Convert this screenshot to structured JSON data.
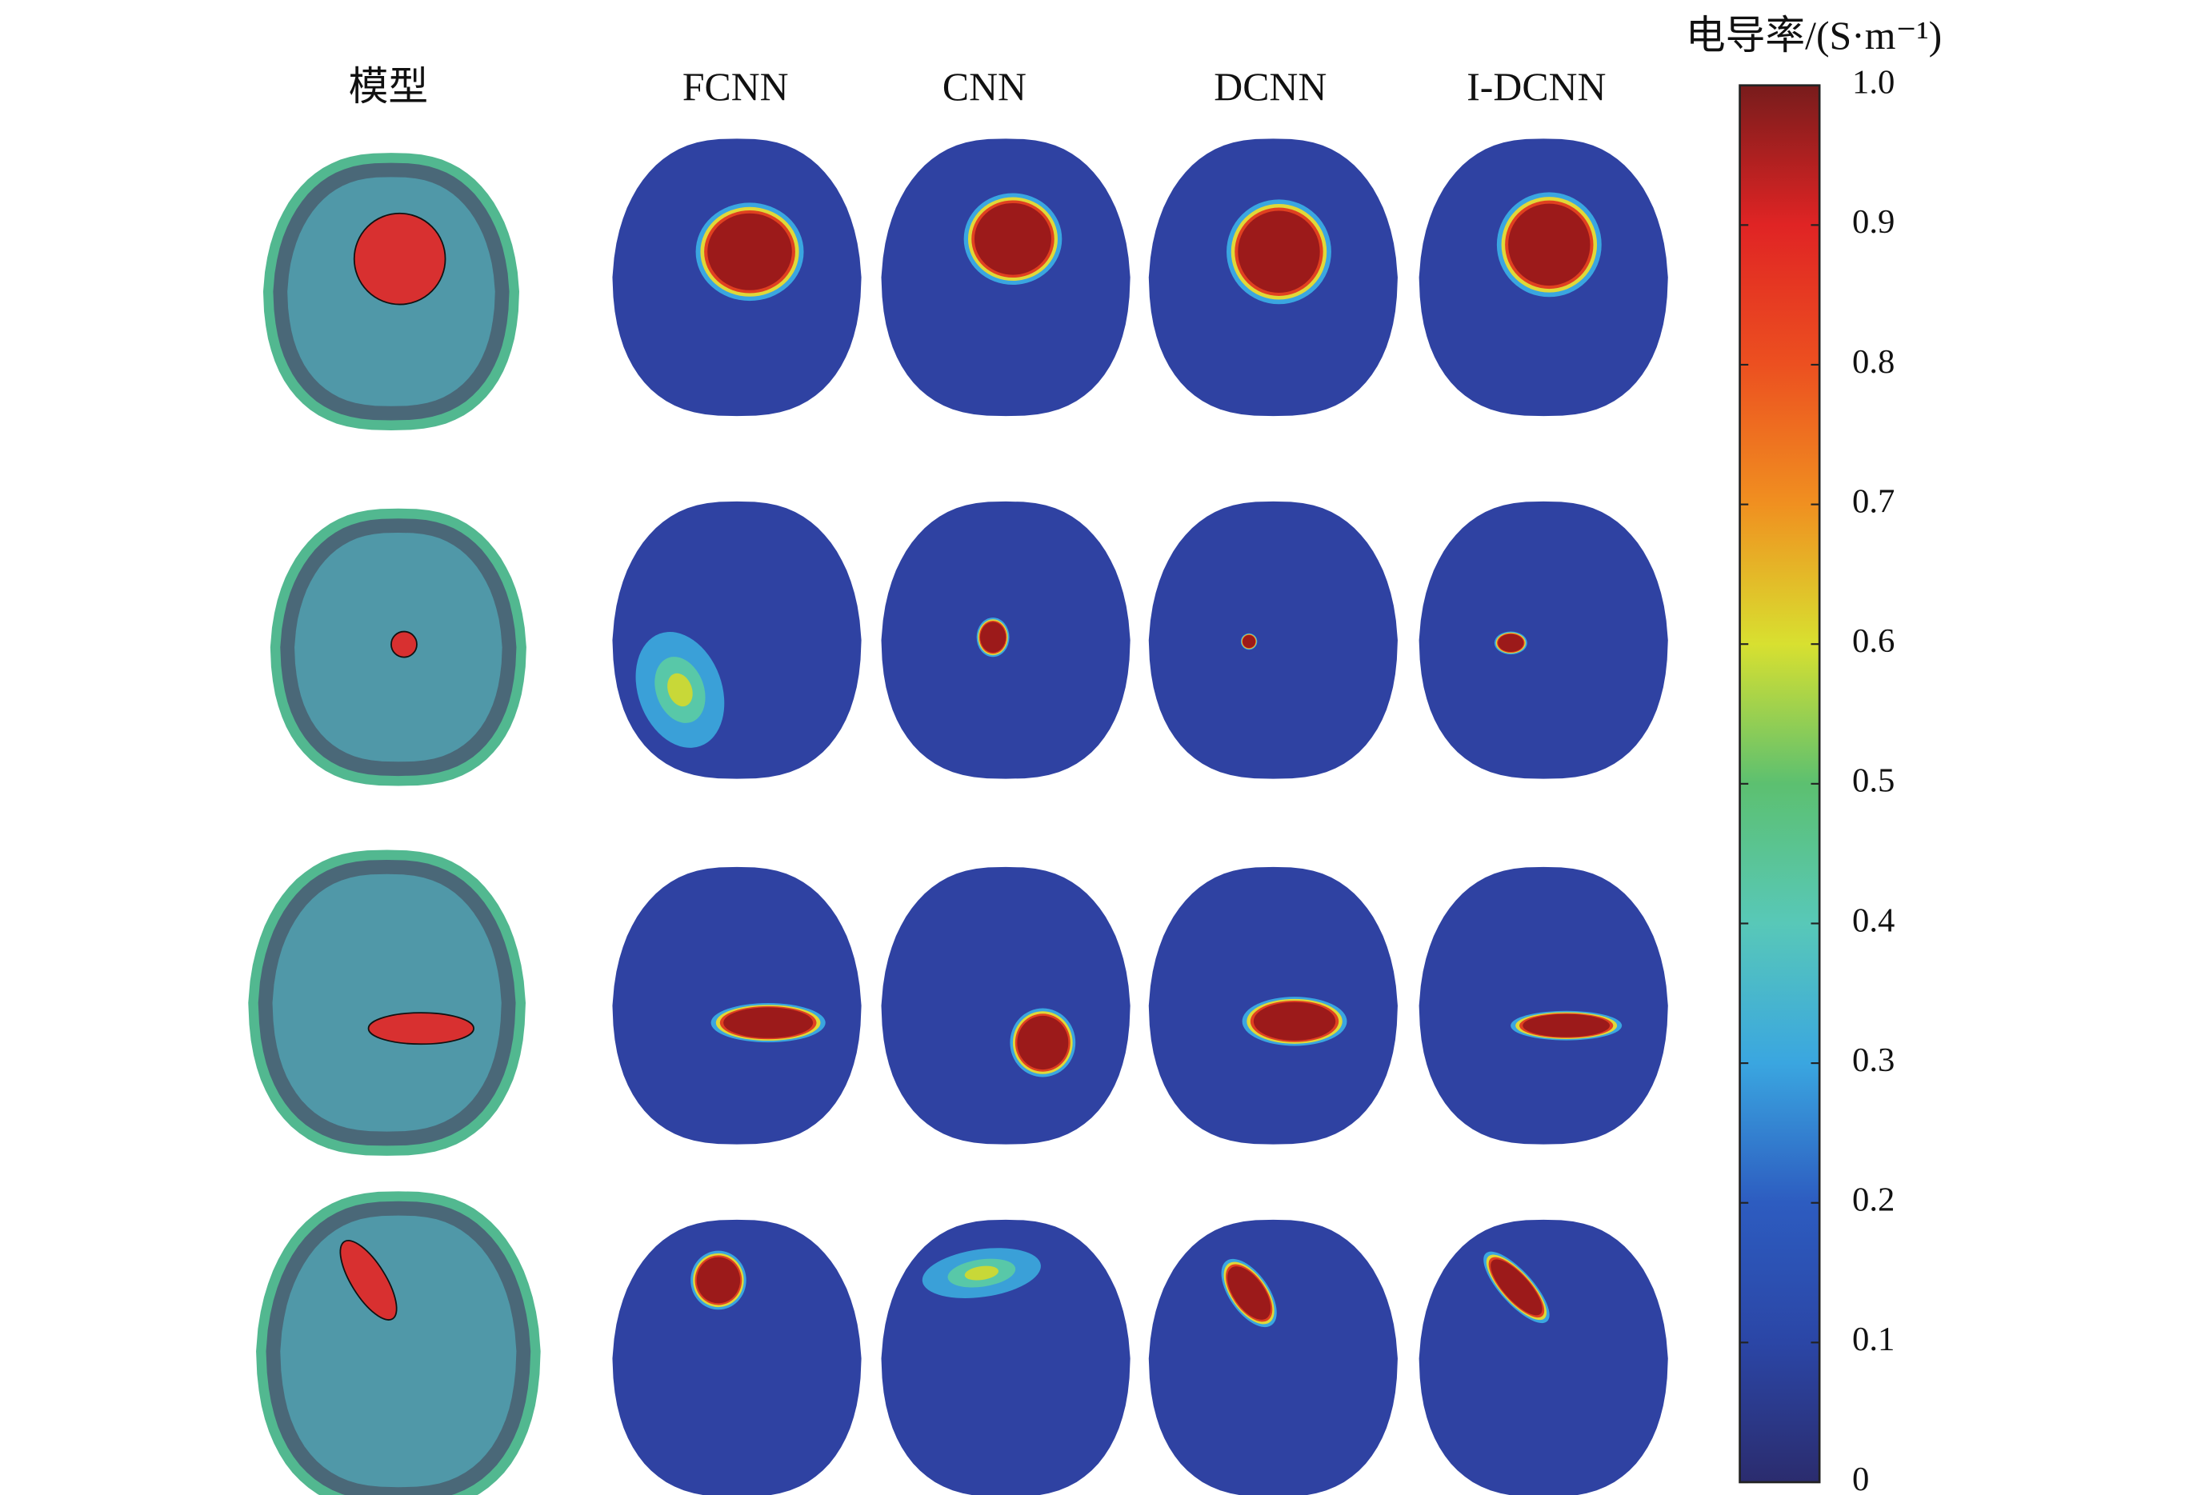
{
  "figure": {
    "columns": [
      "模型",
      "FCNN",
      "CNN",
      "DCNN",
      "I-DCNN"
    ],
    "colorbar": {
      "label": "电导率/(S·m⁻¹)",
      "lim": [
        0,
        1
      ],
      "ticks": [
        0,
        0.1,
        0.2,
        0.3,
        0.4,
        0.5,
        0.6,
        0.7,
        0.8,
        0.9,
        {
          "value": 1,
          "label": "1.0"
        }
      ]
    }
  }
}
